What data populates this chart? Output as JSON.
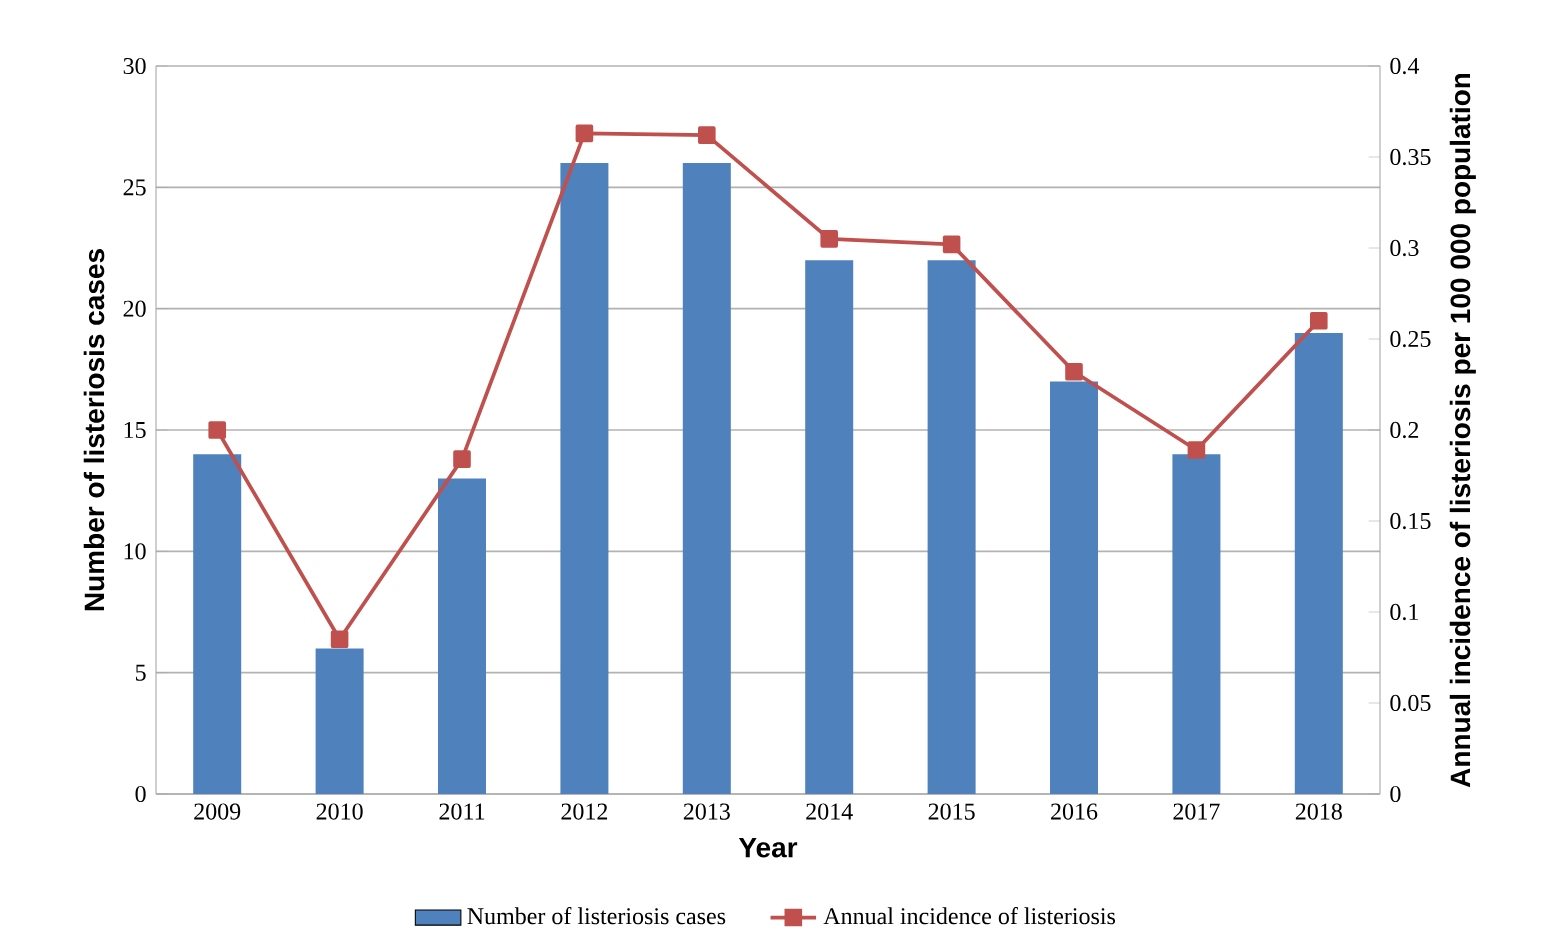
{
  "chart_data": {
    "type": "bar",
    "xlabel": "Year",
    "ylabel": "Number of listeriosis cases",
    "y2label": "Annual incidence of listeriosis per 100 000 population",
    "categories": [
      "2009",
      "2010",
      "2011",
      "2012",
      "2013",
      "2014",
      "2015",
      "2016",
      "2017",
      "2018"
    ],
    "series": [
      {
        "name": "Number of listeriosis cases",
        "color": "#4f81bd",
        "values": [
          14,
          6,
          13,
          26,
          26,
          22,
          22,
          17,
          14,
          19
        ]
      },
      {
        "name": "Annual incidence of listeriosis",
        "type": "line",
        "axis": "y2",
        "color": "#c0504d",
        "marker": "square",
        "values": [
          0.2,
          0.085,
          0.184,
          0.363,
          0.362,
          0.305,
          0.302,
          0.232,
          0.189,
          0.26
        ]
      }
    ],
    "ylim": [
      0,
      30
    ],
    "yticks": [
      0,
      5,
      10,
      15,
      20,
      25,
      30
    ],
    "y2lim": [
      0,
      0.4
    ],
    "y2ticks": [
      0,
      0.05,
      0.1,
      0.15,
      0.2,
      0.25,
      0.3,
      0.35,
      0.4
    ],
    "grid": "y",
    "legend": "bottom"
  }
}
